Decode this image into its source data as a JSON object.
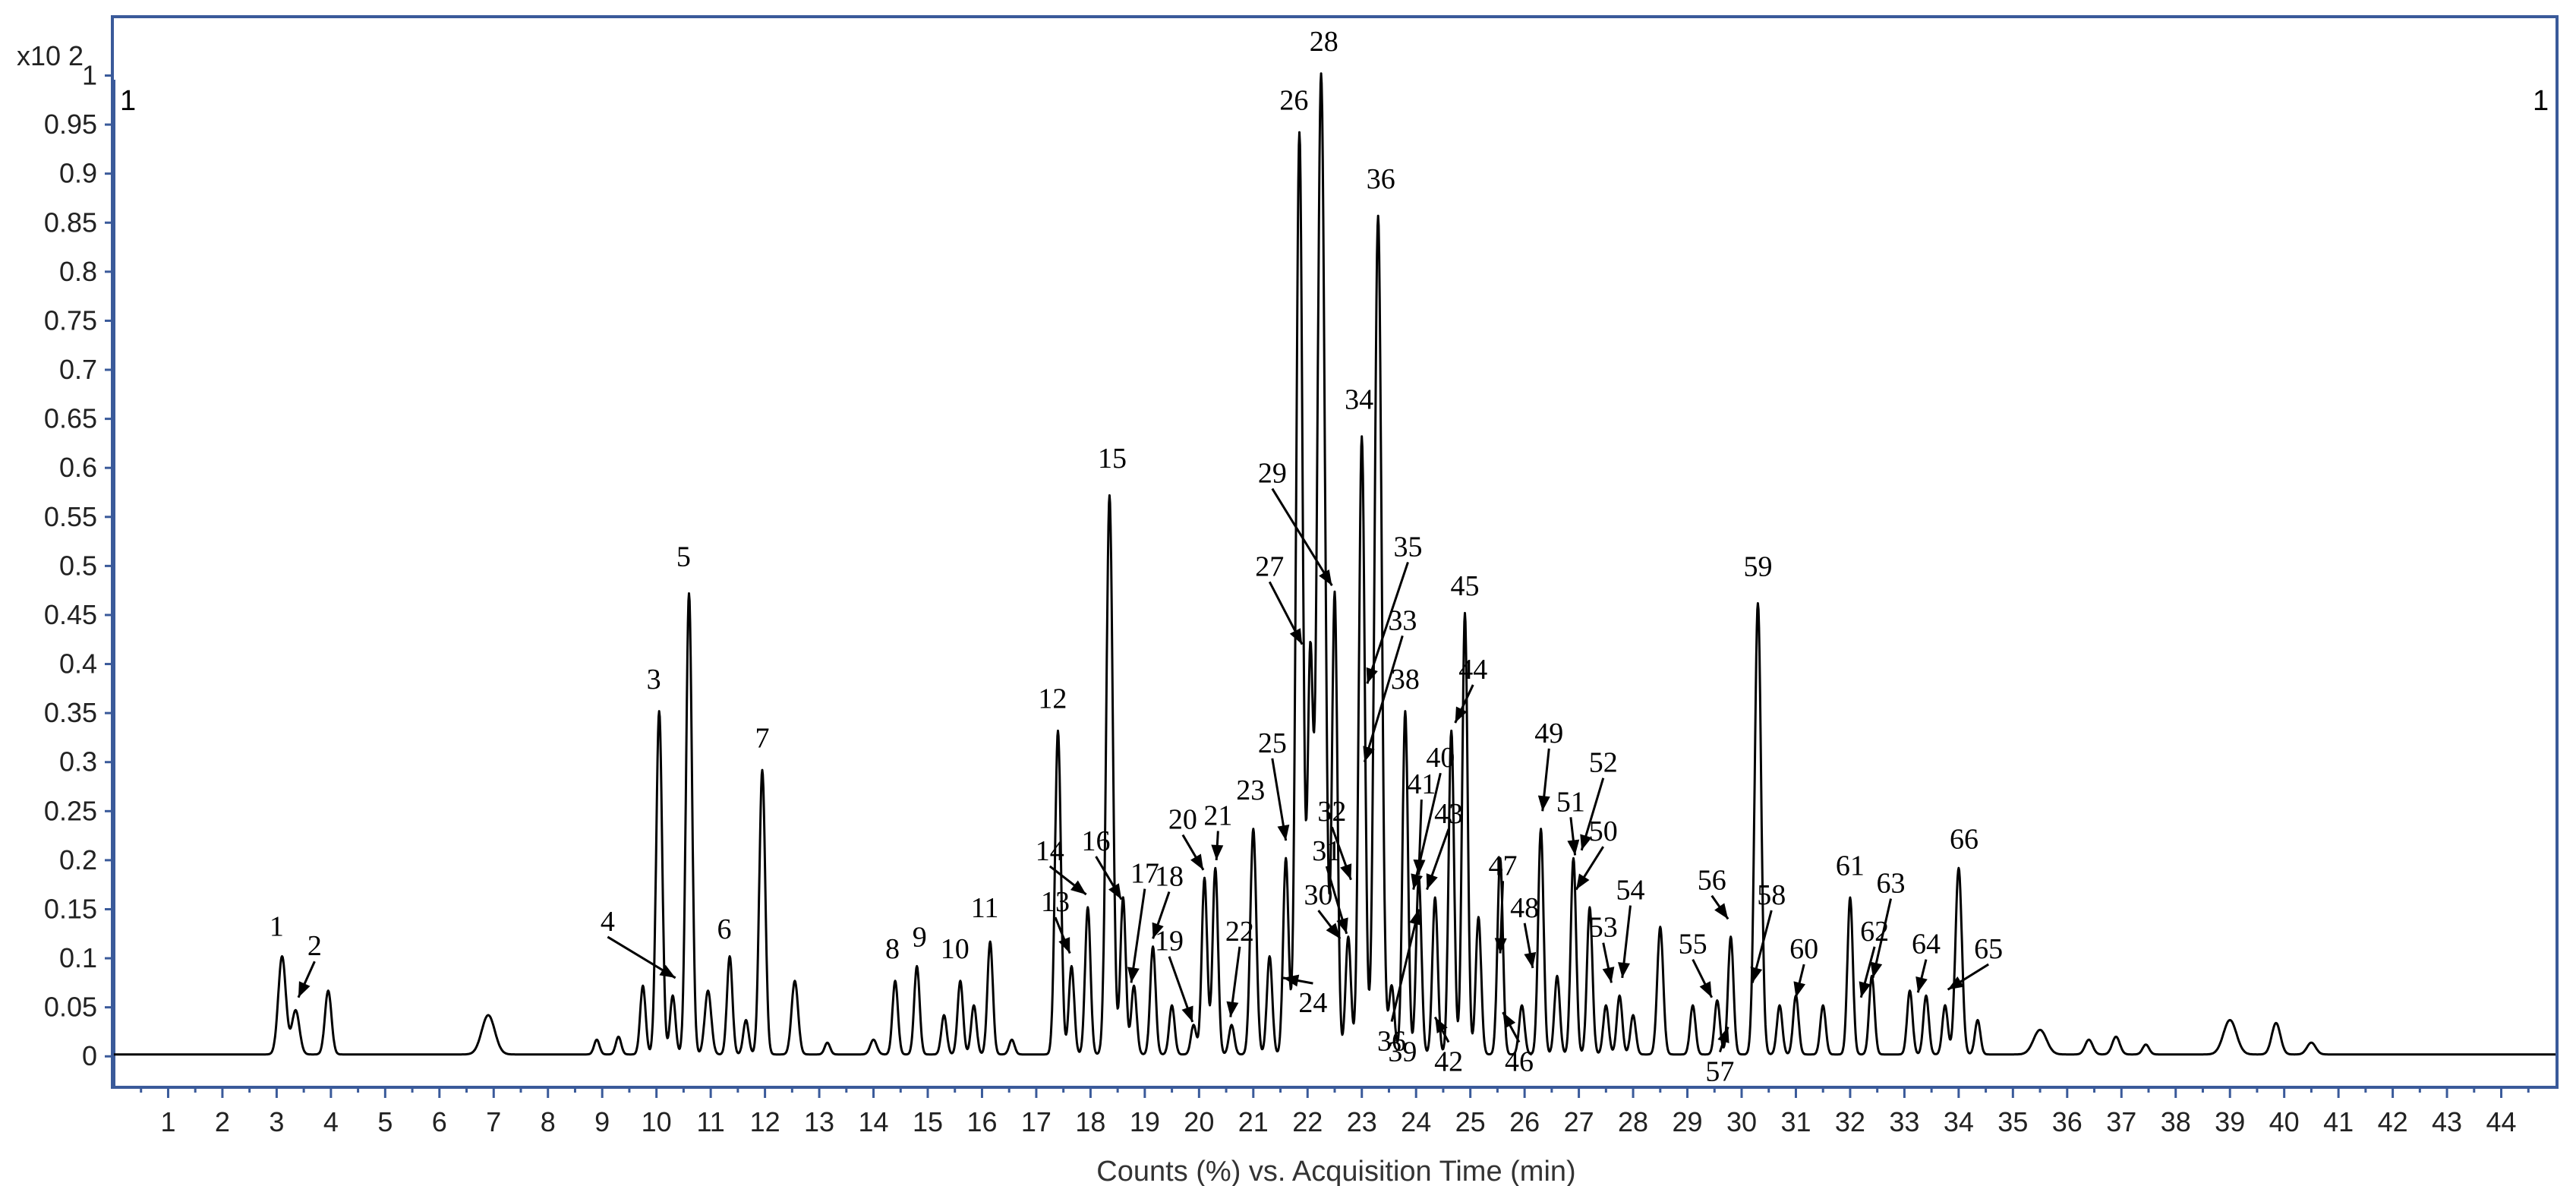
{
  "chart_data": {
    "type": "line",
    "xlabel": "Counts (%) vs. Acquisition Time (min)",
    "ylabel": "",
    "y_multiplier_label": "x10 2",
    "corner_marker": "1",
    "xlim": [
      0,
      45
    ],
    "ylim": [
      -0.03,
      1.06
    ],
    "x_ticks": [
      "1",
      "2",
      "3",
      "4",
      "5",
      "6",
      "7",
      "8",
      "9",
      "10",
      "11",
      "12",
      "13",
      "14",
      "15",
      "16",
      "17",
      "18",
      "19",
      "20",
      "21",
      "22",
      "23",
      "24",
      "25",
      "26",
      "27",
      "28",
      "29",
      "30",
      "31",
      "32",
      "33",
      "34",
      "35",
      "36",
      "37",
      "38",
      "39",
      "40",
      "41",
      "42",
      "43",
      "44"
    ],
    "y_ticks": [
      "0",
      "0.05",
      "0.1",
      "0.15",
      "0.2",
      "0.25",
      "0.3",
      "0.35",
      "0.4",
      "0.45",
      "0.5",
      "0.55",
      "0.6",
      "0.65",
      "0.7",
      "0.75",
      "0.8",
      "0.85",
      "0.9",
      "0.95",
      "1"
    ],
    "baseline": 0.002,
    "line_color": "#000000",
    "frame_color": "#3a5a9a",
    "peaks": [
      {
        "t": 3.1,
        "h": 0.1,
        "w": 0.07
      },
      {
        "t": 3.35,
        "h": 0.045,
        "w": 0.07
      },
      {
        "t": 3.95,
        "h": 0.065,
        "w": 0.06
      },
      {
        "t": 6.9,
        "h": 0.04,
        "w": 0.12
      },
      {
        "t": 8.9,
        "h": 0.015,
        "w": 0.05
      },
      {
        "t": 9.3,
        "h": 0.018,
        "w": 0.05
      },
      {
        "t": 9.75,
        "h": 0.07,
        "w": 0.05
      },
      {
        "t": 10.05,
        "h": 0.35,
        "w": 0.055
      },
      {
        "t": 10.3,
        "h": 0.06,
        "w": 0.05
      },
      {
        "t": 10.6,
        "h": 0.47,
        "w": 0.055
      },
      {
        "t": 10.95,
        "h": 0.065,
        "w": 0.06
      },
      {
        "t": 11.35,
        "h": 0.1,
        "w": 0.05
      },
      {
        "t": 11.65,
        "h": 0.035,
        "w": 0.05
      },
      {
        "t": 11.95,
        "h": 0.29,
        "w": 0.055
      },
      {
        "t": 12.55,
        "h": 0.075,
        "w": 0.06
      },
      {
        "t": 13.15,
        "h": 0.012,
        "w": 0.05
      },
      {
        "t": 14.0,
        "h": 0.015,
        "w": 0.06
      },
      {
        "t": 14.4,
        "h": 0.075,
        "w": 0.05
      },
      {
        "t": 14.8,
        "h": 0.09,
        "w": 0.05
      },
      {
        "t": 15.3,
        "h": 0.04,
        "w": 0.05
      },
      {
        "t": 15.6,
        "h": 0.075,
        "w": 0.05
      },
      {
        "t": 15.85,
        "h": 0.05,
        "w": 0.05
      },
      {
        "t": 16.15,
        "h": 0.115,
        "w": 0.05
      },
      {
        "t": 16.55,
        "h": 0.015,
        "w": 0.05
      },
      {
        "t": 17.4,
        "h": 0.33,
        "w": 0.055
      },
      {
        "t": 17.65,
        "h": 0.09,
        "w": 0.05
      },
      {
        "t": 17.95,
        "h": 0.15,
        "w": 0.05
      },
      {
        "t": 18.35,
        "h": 0.57,
        "w": 0.06
      },
      {
        "t": 18.6,
        "h": 0.16,
        "w": 0.05
      },
      {
        "t": 18.8,
        "h": 0.07,
        "w": 0.05
      },
      {
        "t": 19.15,
        "h": 0.11,
        "w": 0.05
      },
      {
        "t": 19.5,
        "h": 0.05,
        "w": 0.05
      },
      {
        "t": 19.9,
        "h": 0.03,
        "w": 0.05
      },
      {
        "t": 20.1,
        "h": 0.18,
        "w": 0.05
      },
      {
        "t": 20.3,
        "h": 0.19,
        "w": 0.05
      },
      {
        "t": 20.6,
        "h": 0.03,
        "w": 0.05
      },
      {
        "t": 21.0,
        "h": 0.23,
        "w": 0.055
      },
      {
        "t": 21.3,
        "h": 0.1,
        "w": 0.05
      },
      {
        "t": 21.6,
        "h": 0.2,
        "w": 0.05
      },
      {
        "t": 21.85,
        "h": 0.94,
        "w": 0.06
      },
      {
        "t": 22.05,
        "h": 0.4,
        "w": 0.05
      },
      {
        "t": 22.25,
        "h": 1.0,
        "w": 0.07
      },
      {
        "t": 22.5,
        "h": 0.47,
        "w": 0.05
      },
      {
        "t": 22.75,
        "h": 0.12,
        "w": 0.05
      },
      {
        "t": 23.0,
        "h": 0.63,
        "w": 0.055
      },
      {
        "t": 23.3,
        "h": 0.855,
        "w": 0.065
      },
      {
        "t": 23.55,
        "h": 0.07,
        "w": 0.05
      },
      {
        "t": 23.8,
        "h": 0.35,
        "w": 0.05
      },
      {
        "t": 24.05,
        "h": 0.18,
        "w": 0.05
      },
      {
        "t": 24.35,
        "h": 0.16,
        "w": 0.05
      },
      {
        "t": 24.65,
        "h": 0.33,
        "w": 0.05
      },
      {
        "t": 24.9,
        "h": 0.45,
        "w": 0.05
      },
      {
        "t": 25.15,
        "h": 0.14,
        "w": 0.05
      },
      {
        "t": 25.55,
        "h": 0.2,
        "w": 0.05
      },
      {
        "t": 25.95,
        "h": 0.05,
        "w": 0.05
      },
      {
        "t": 26.3,
        "h": 0.23,
        "w": 0.05
      },
      {
        "t": 26.6,
        "h": 0.08,
        "w": 0.05
      },
      {
        "t": 26.9,
        "h": 0.2,
        "w": 0.05
      },
      {
        "t": 27.2,
        "h": 0.15,
        "w": 0.05
      },
      {
        "t": 27.5,
        "h": 0.05,
        "w": 0.05
      },
      {
        "t": 27.75,
        "h": 0.06,
        "w": 0.05
      },
      {
        "t": 28.0,
        "h": 0.04,
        "w": 0.05
      },
      {
        "t": 28.5,
        "h": 0.13,
        "w": 0.055
      },
      {
        "t": 29.1,
        "h": 0.05,
        "w": 0.05
      },
      {
        "t": 29.55,
        "h": 0.055,
        "w": 0.05
      },
      {
        "t": 29.8,
        "h": 0.12,
        "w": 0.05
      },
      {
        "t": 30.3,
        "h": 0.46,
        "w": 0.06
      },
      {
        "t": 30.7,
        "h": 0.05,
        "w": 0.05
      },
      {
        "t": 31.0,
        "h": 0.06,
        "w": 0.05
      },
      {
        "t": 31.5,
        "h": 0.05,
        "w": 0.05
      },
      {
        "t": 32.0,
        "h": 0.16,
        "w": 0.05
      },
      {
        "t": 32.4,
        "h": 0.08,
        "w": 0.05
      },
      {
        "t": 33.1,
        "h": 0.065,
        "w": 0.05
      },
      {
        "t": 33.4,
        "h": 0.06,
        "w": 0.05
      },
      {
        "t": 33.75,
        "h": 0.05,
        "w": 0.05
      },
      {
        "t": 34.0,
        "h": 0.19,
        "w": 0.06
      },
      {
        "t": 34.35,
        "h": 0.035,
        "w": 0.05
      },
      {
        "t": 35.5,
        "h": 0.025,
        "w": 0.12
      },
      {
        "t": 36.4,
        "h": 0.015,
        "w": 0.07
      },
      {
        "t": 36.9,
        "h": 0.018,
        "w": 0.07
      },
      {
        "t": 37.45,
        "h": 0.01,
        "w": 0.06
      },
      {
        "t": 39.0,
        "h": 0.035,
        "w": 0.12
      },
      {
        "t": 39.85,
        "h": 0.032,
        "w": 0.08
      },
      {
        "t": 40.5,
        "h": 0.012,
        "w": 0.08
      }
    ],
    "annotations": [
      {
        "label": "1",
        "x": 3.0,
        "y": 0.123
      },
      {
        "label": "2",
        "x": 3.7,
        "y": 0.103,
        "ax": 3.4,
        "ay": 0.06
      },
      {
        "label": "3",
        "x": 9.95,
        "y": 0.375
      },
      {
        "label": "4",
        "x": 9.1,
        "y": 0.128,
        "ax": 10.35,
        "ay": 0.08
      },
      {
        "label": "5",
        "x": 10.5,
        "y": 0.5
      },
      {
        "label": "6",
        "x": 11.25,
        "y": 0.12
      },
      {
        "label": "7",
        "x": 11.95,
        "y": 0.315
      },
      {
        "label": "8",
        "x": 14.35,
        "y": 0.1
      },
      {
        "label": "9",
        "x": 14.85,
        "y": 0.112
      },
      {
        "label": "10",
        "x": 15.5,
        "y": 0.1
      },
      {
        "label": "11",
        "x": 16.05,
        "y": 0.142
      },
      {
        "label": "12",
        "x": 17.3,
        "y": 0.355
      },
      {
        "label": "13",
        "x": 17.35,
        "y": 0.148,
        "ax": 17.62,
        "ay": 0.105
      },
      {
        "label": "14",
        "x": 17.25,
        "y": 0.2,
        "ax": 17.92,
        "ay": 0.165
      },
      {
        "label": "15",
        "x": 18.4,
        "y": 0.6
      },
      {
        "label": "16",
        "x": 18.1,
        "y": 0.21,
        "ax": 18.57,
        "ay": 0.16
      },
      {
        "label": "17",
        "x": 19.0,
        "y": 0.177,
        "ax": 18.75,
        "ay": 0.075
      },
      {
        "label": "18",
        "x": 19.45,
        "y": 0.174,
        "ax": 19.15,
        "ay": 0.12
      },
      {
        "label": "19",
        "x": 19.45,
        "y": 0.108,
        "ax": 19.88,
        "ay": 0.035
      },
      {
        "label": "20",
        "x": 19.7,
        "y": 0.232,
        "ax": 20.08,
        "ay": 0.19
      },
      {
        "label": "21",
        "x": 20.35,
        "y": 0.236,
        "ax": 20.32,
        "ay": 0.2
      },
      {
        "label": "22",
        "x": 20.75,
        "y": 0.118,
        "ax": 20.58,
        "ay": 0.04
      },
      {
        "label": "23",
        "x": 20.95,
        "y": 0.262
      },
      {
        "label": "24",
        "x": 22.1,
        "y": 0.045,
        "ax": 21.55,
        "ay": 0.08
      },
      {
        "label": "25",
        "x": 21.35,
        "y": 0.31,
        "ax": 21.6,
        "ay": 0.22
      },
      {
        "label": "26",
        "x": 21.75,
        "y": 0.965
      },
      {
        "label": "27",
        "x": 21.3,
        "y": 0.49,
        "ax": 21.9,
        "ay": 0.42
      },
      {
        "label": "28",
        "x": 22.3,
        "y": 1.025
      },
      {
        "label": "29",
        "x": 21.35,
        "y": 0.585,
        "ax": 22.45,
        "ay": 0.48
      },
      {
        "label": "30",
        "x": 22.2,
        "y": 0.155,
        "ax": 22.6,
        "ay": 0.12
      },
      {
        "label": "31",
        "x": 22.35,
        "y": 0.2,
        "ax": 22.72,
        "ay": 0.125
      },
      {
        "label": "32",
        "x": 22.45,
        "y": 0.24,
        "ax": 22.8,
        "ay": 0.18
      },
      {
        "label": "33",
        "x": 23.75,
        "y": 0.435,
        "ax": 23.05,
        "ay": 0.3
      },
      {
        "label": "34",
        "x": 22.95,
        "y": 0.66
      },
      {
        "label": "35",
        "x": 23.85,
        "y": 0.51,
        "ax": 23.1,
        "ay": 0.38
      },
      {
        "label": "36",
        "x": 23.35,
        "y": 0.885
      },
      {
        "label": "36",
        "x": 23.55,
        "y": 0.006,
        "ax": 24.05,
        "ay": 0.15
      },
      {
        "label": "38",
        "x": 23.8,
        "y": 0.375
      },
      {
        "label": "39",
        "x": 23.75,
        "y": -0.005
      },
      {
        "label": "40",
        "x": 24.45,
        "y": 0.295,
        "ax": 23.95,
        "ay": 0.17
      },
      {
        "label": "41",
        "x": 24.1,
        "y": 0.268,
        "ax": 24.05,
        "ay": 0.185
      },
      {
        "label": "42",
        "x": 24.6,
        "y": -0.015,
        "ax": 24.35,
        "ay": 0.04
      },
      {
        "label": "43",
        "x": 24.6,
        "y": 0.238,
        "ax": 24.2,
        "ay": 0.17
      },
      {
        "label": "44",
        "x": 25.05,
        "y": 0.385,
        "ax": 24.72,
        "ay": 0.34
      },
      {
        "label": "45",
        "x": 24.9,
        "y": 0.47
      },
      {
        "label": "46",
        "x": 25.9,
        "y": -0.015,
        "ax": 25.6,
        "ay": 0.045
      },
      {
        "label": "47",
        "x": 25.6,
        "y": 0.185,
        "ax": 25.55,
        "ay": 0.105
      },
      {
        "label": "48",
        "x": 26.0,
        "y": 0.142,
        "ax": 26.15,
        "ay": 0.09
      },
      {
        "label": "49",
        "x": 26.45,
        "y": 0.32,
        "ax": 26.33,
        "ay": 0.25
      },
      {
        "label": "50",
        "x": 27.45,
        "y": 0.22,
        "ax": 26.95,
        "ay": 0.17
      },
      {
        "label": "51",
        "x": 26.85,
        "y": 0.25,
        "ax": 26.93,
        "ay": 0.205
      },
      {
        "label": "52",
        "x": 27.45,
        "y": 0.29,
        "ax": 27.05,
        "ay": 0.21
      },
      {
        "label": "53",
        "x": 27.45,
        "y": 0.122,
        "ax": 27.6,
        "ay": 0.075
      },
      {
        "label": "54",
        "x": 27.95,
        "y": 0.16,
        "ax": 27.8,
        "ay": 0.08
      },
      {
        "label": "55",
        "x": 29.1,
        "y": 0.105,
        "ax": 29.45,
        "ay": 0.06
      },
      {
        "label": "56",
        "x": 29.45,
        "y": 0.17,
        "ax": 29.75,
        "ay": 0.14
      },
      {
        "label": "57",
        "x": 29.6,
        "y": -0.025,
        "ax": 29.75,
        "ay": 0.03
      },
      {
        "label": "58",
        "x": 30.55,
        "y": 0.155,
        "ax": 30.2,
        "ay": 0.075
      },
      {
        "label": "59",
        "x": 30.3,
        "y": 0.49
      },
      {
        "label": "60",
        "x": 31.15,
        "y": 0.1,
        "ax": 31.0,
        "ay": 0.06
      },
      {
        "label": "61",
        "x": 32.0,
        "y": 0.185
      },
      {
        "label": "62",
        "x": 32.45,
        "y": 0.118,
        "ax": 32.2,
        "ay": 0.06
      },
      {
        "label": "63",
        "x": 32.75,
        "y": 0.167,
        "ax": 32.42,
        "ay": 0.08
      },
      {
        "label": "64",
        "x": 33.4,
        "y": 0.105,
        "ax": 33.25,
        "ay": 0.065
      },
      {
        "label": "65",
        "x": 34.55,
        "y": 0.1,
        "ax": 33.8,
        "ay": 0.068
      },
      {
        "label": "66",
        "x": 34.1,
        "y": 0.212
      }
    ]
  }
}
